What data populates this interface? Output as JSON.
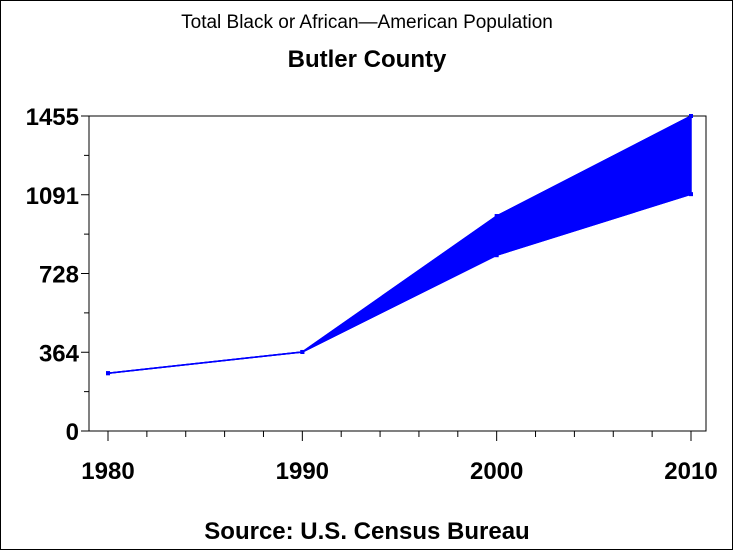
{
  "chart_data": {
    "type": "area",
    "title": "Total Black or African—American Population",
    "subtitle": "Butler County",
    "footnote": "Source: U.S. Census Bureau",
    "xlabel": "",
    "ylabel": "",
    "x": [
      1980,
      1990,
      2000,
      2010
    ],
    "x_ticks": [
      "1980",
      "1990",
      "2000",
      "2010"
    ],
    "y_ticks": [
      "0",
      "364",
      "728",
      "1091",
      "1455"
    ],
    "ylim": [
      0,
      1455
    ],
    "xlim": [
      1980,
      2010
    ],
    "series": [
      {
        "name": "upper",
        "values": [
          267,
          365,
          993,
          1455
        ]
      },
      {
        "name": "lower",
        "values": [
          267,
          365,
          812,
          1094
        ]
      }
    ],
    "color": "#0000ff",
    "grid": false
  }
}
